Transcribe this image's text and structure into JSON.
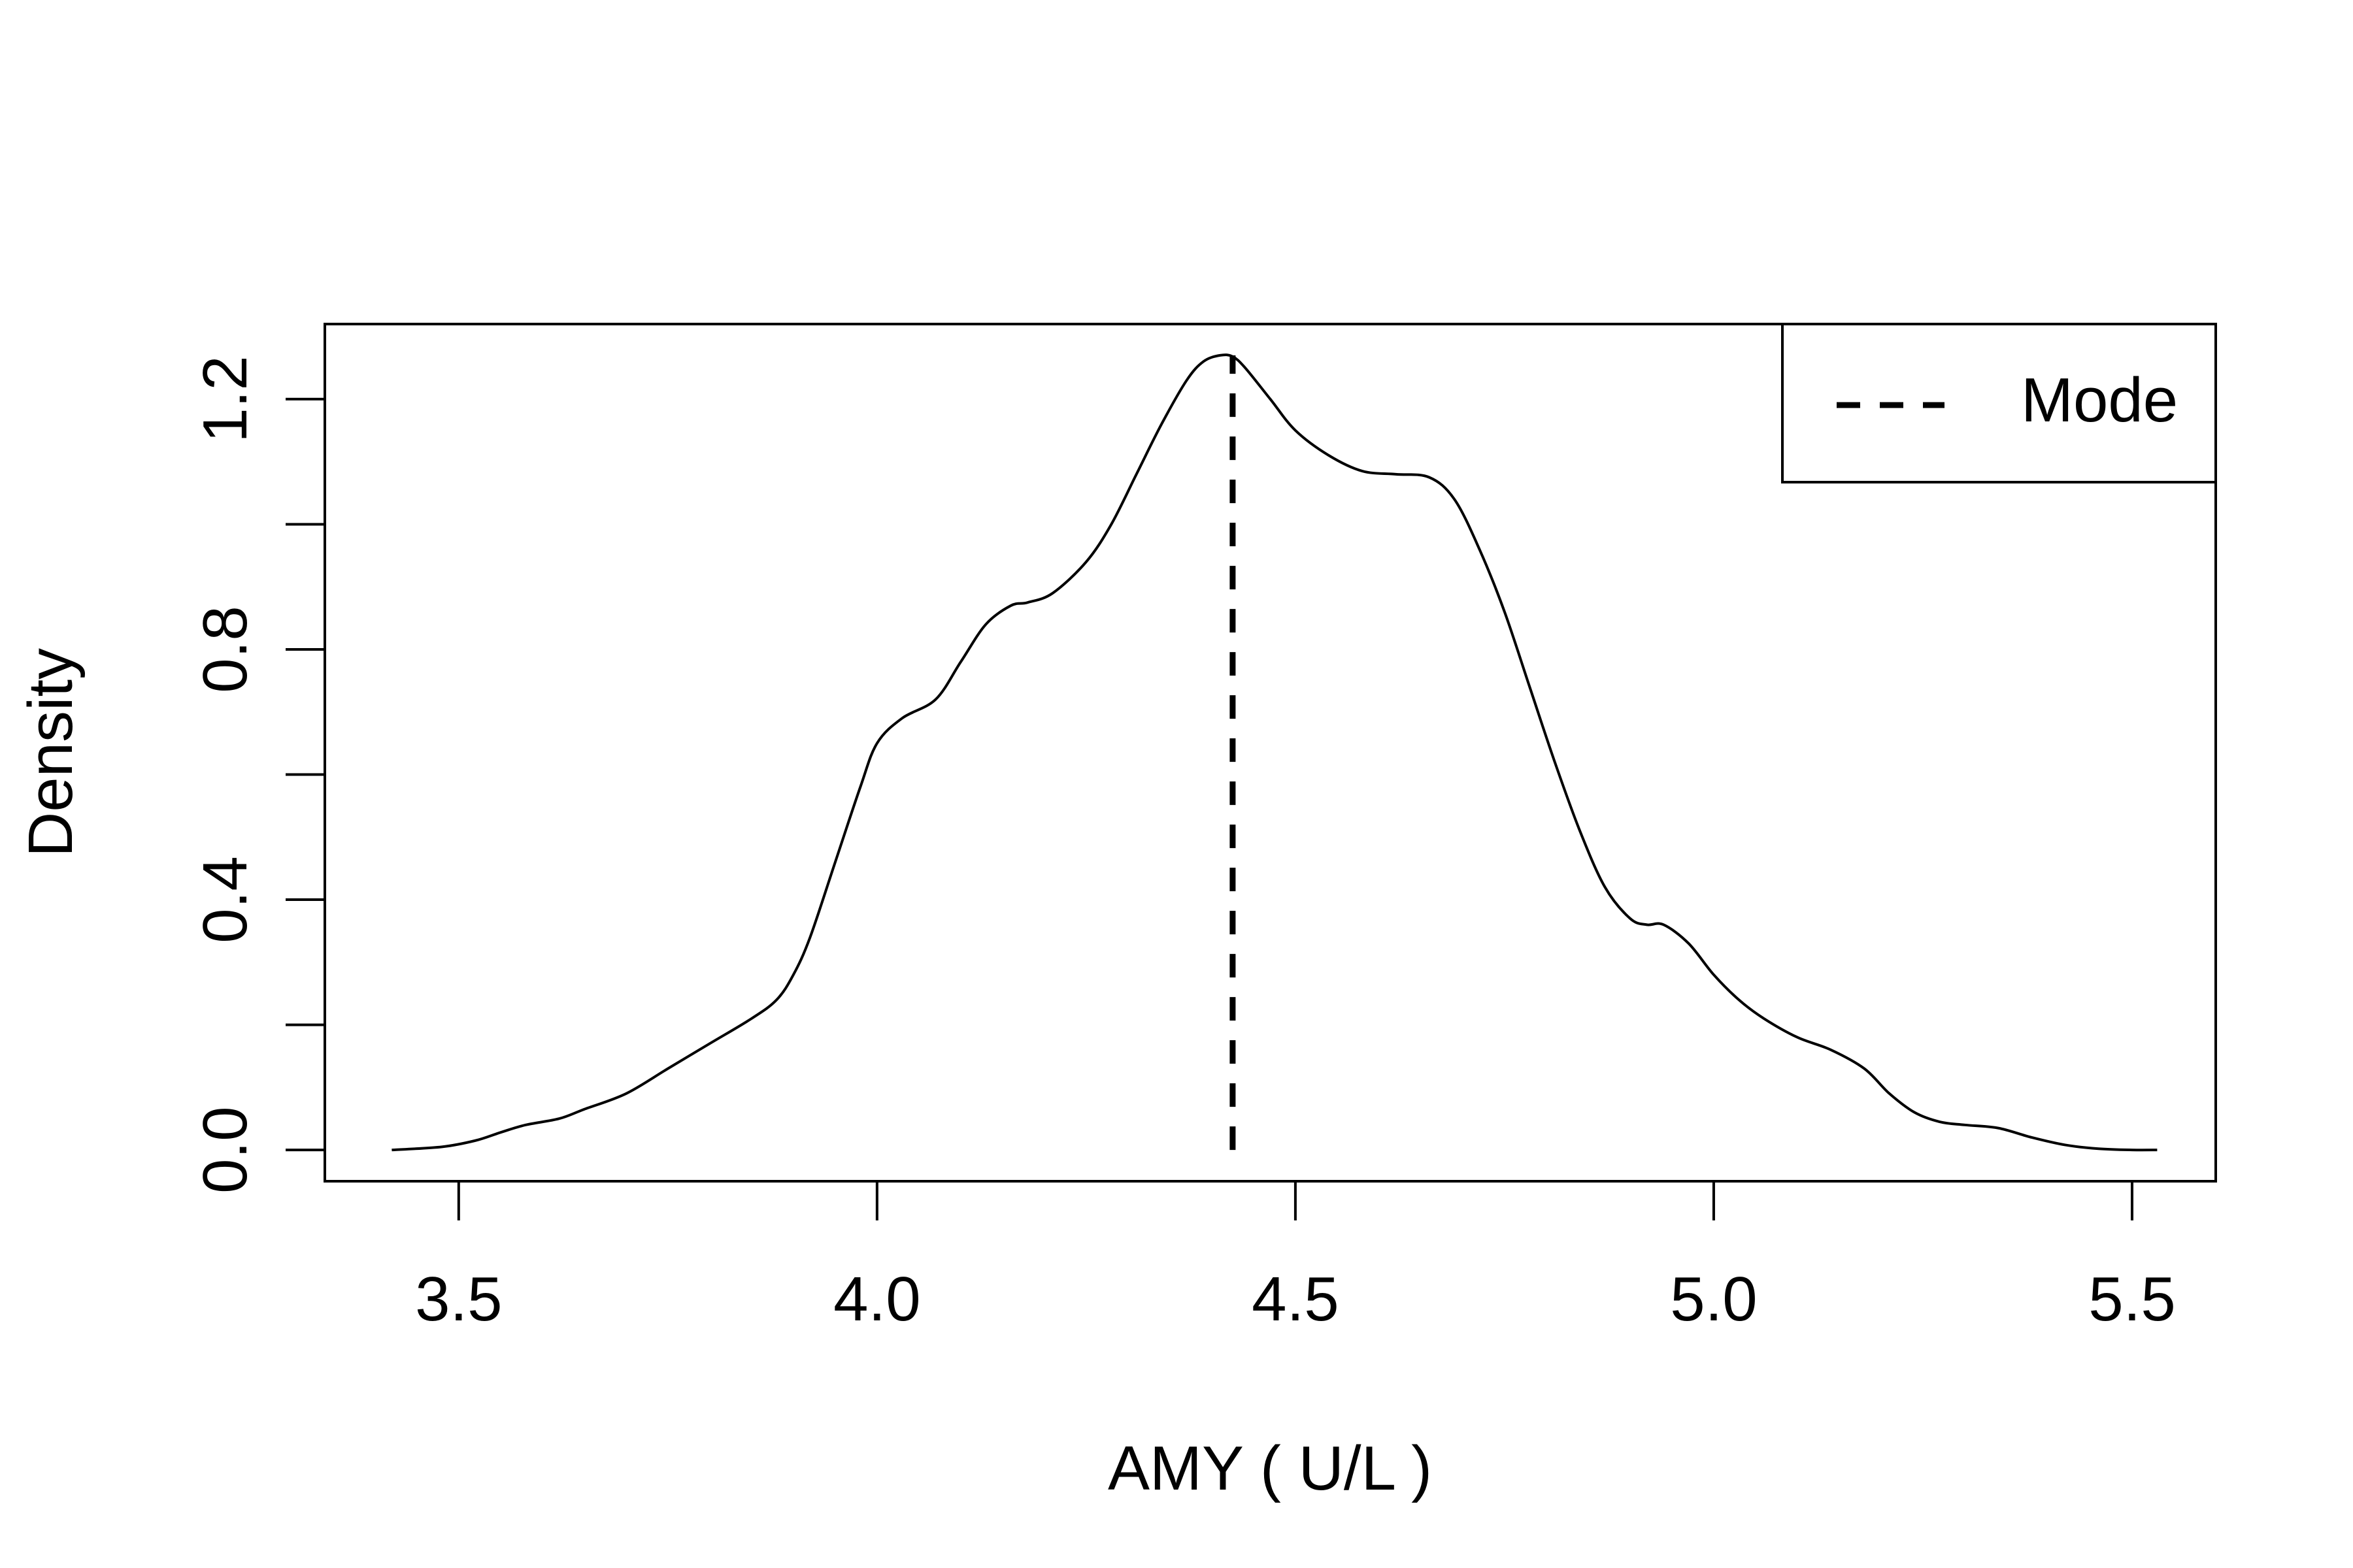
{
  "chart_data": {
    "type": "line",
    "title": "",
    "xlabel": "AMY ( U/L )",
    "ylabel": "Density",
    "xlim": [
      3.34,
      5.6
    ],
    "ylim": [
      -0.05,
      1.32
    ],
    "x_ticks": [
      "3.5",
      "4.0",
      "4.5",
      "5.0",
      "5.5"
    ],
    "y_ticks": [
      "0.0",
      "0.4",
      "0.8",
      "1.2"
    ],
    "y_minor_ticks": [
      0.0,
      0.2,
      0.4,
      0.6,
      0.8,
      1.0,
      1.2
    ],
    "grid": false,
    "legend": {
      "position": "top-right",
      "entries": [
        "Mode"
      ]
    },
    "series": [
      {
        "name": "",
        "x": [
          3.42,
          3.48,
          3.52,
          3.55,
          3.58,
          3.62,
          3.65,
          3.7,
          3.75,
          3.8,
          3.85,
          3.88,
          3.9,
          3.92,
          3.95,
          3.98,
          4.0,
          4.03,
          4.07,
          4.1,
          4.13,
          4.16,
          4.18,
          4.21,
          4.25,
          4.28,
          4.31,
          4.34,
          4.37,
          4.39,
          4.41,
          4.425,
          4.44,
          4.47,
          4.5,
          4.54,
          4.58,
          4.62,
          4.66,
          4.69,
          4.72,
          4.75,
          4.78,
          4.81,
          4.84,
          4.87,
          4.9,
          4.92,
          4.94,
          4.97,
          5.0,
          5.03,
          5.06,
          5.1,
          5.14,
          5.18,
          5.21,
          5.24,
          5.27,
          5.3,
          5.34,
          5.38,
          5.42,
          5.46,
          5.5,
          5.53
        ],
        "y": [
          0.0,
          0.005,
          0.015,
          0.028,
          0.04,
          0.05,
          0.065,
          0.09,
          0.13,
          0.17,
          0.21,
          0.24,
          0.28,
          0.34,
          0.46,
          0.58,
          0.65,
          0.69,
          0.72,
          0.78,
          0.84,
          0.87,
          0.875,
          0.89,
          0.94,
          1.0,
          1.08,
          1.16,
          1.23,
          1.26,
          1.27,
          1.268,
          1.25,
          1.2,
          1.15,
          1.11,
          1.085,
          1.08,
          1.075,
          1.04,
          0.96,
          0.86,
          0.74,
          0.62,
          0.51,
          0.42,
          0.37,
          0.36,
          0.36,
          0.33,
          0.28,
          0.24,
          0.21,
          0.18,
          0.16,
          0.13,
          0.09,
          0.06,
          0.045,
          0.04,
          0.035,
          0.02,
          0.008,
          0.002,
          0.0,
          0.0
        ]
      }
    ],
    "mode_line": {
      "x": 4.425,
      "y_top": 1.27,
      "style": "dashed"
    },
    "colors": {
      "line": "#000000",
      "background": "#ffffff"
    }
  }
}
